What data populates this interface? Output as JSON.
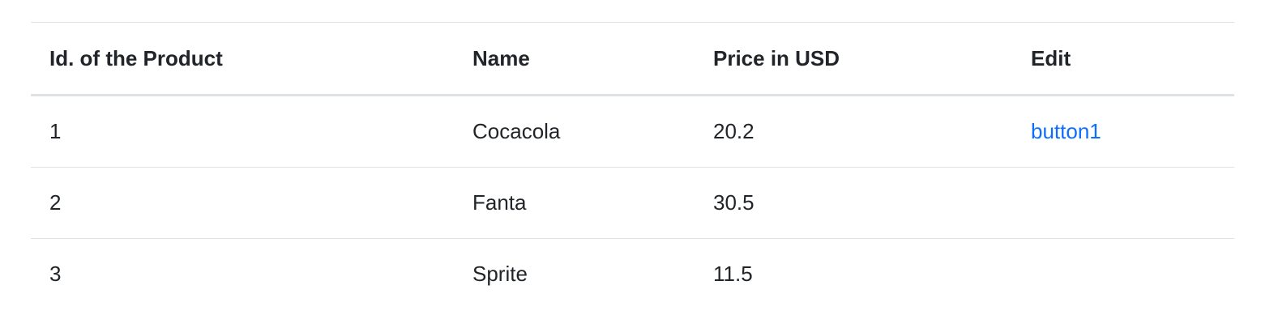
{
  "table": {
    "headers": [
      "Id. of the Product",
      "Name",
      "Price in USD",
      "Edit"
    ],
    "rows": [
      {
        "id": "1",
        "name": "Cocacola",
        "price": "20.2",
        "edit": "button1"
      },
      {
        "id": "2",
        "name": "Fanta",
        "price": "30.5",
        "edit": ""
      },
      {
        "id": "3",
        "name": "Sprite",
        "price": "11.5",
        "edit": ""
      }
    ]
  },
  "colors": {
    "text": "#212529",
    "link": "#0d6efd",
    "border": "#dee2e6"
  }
}
